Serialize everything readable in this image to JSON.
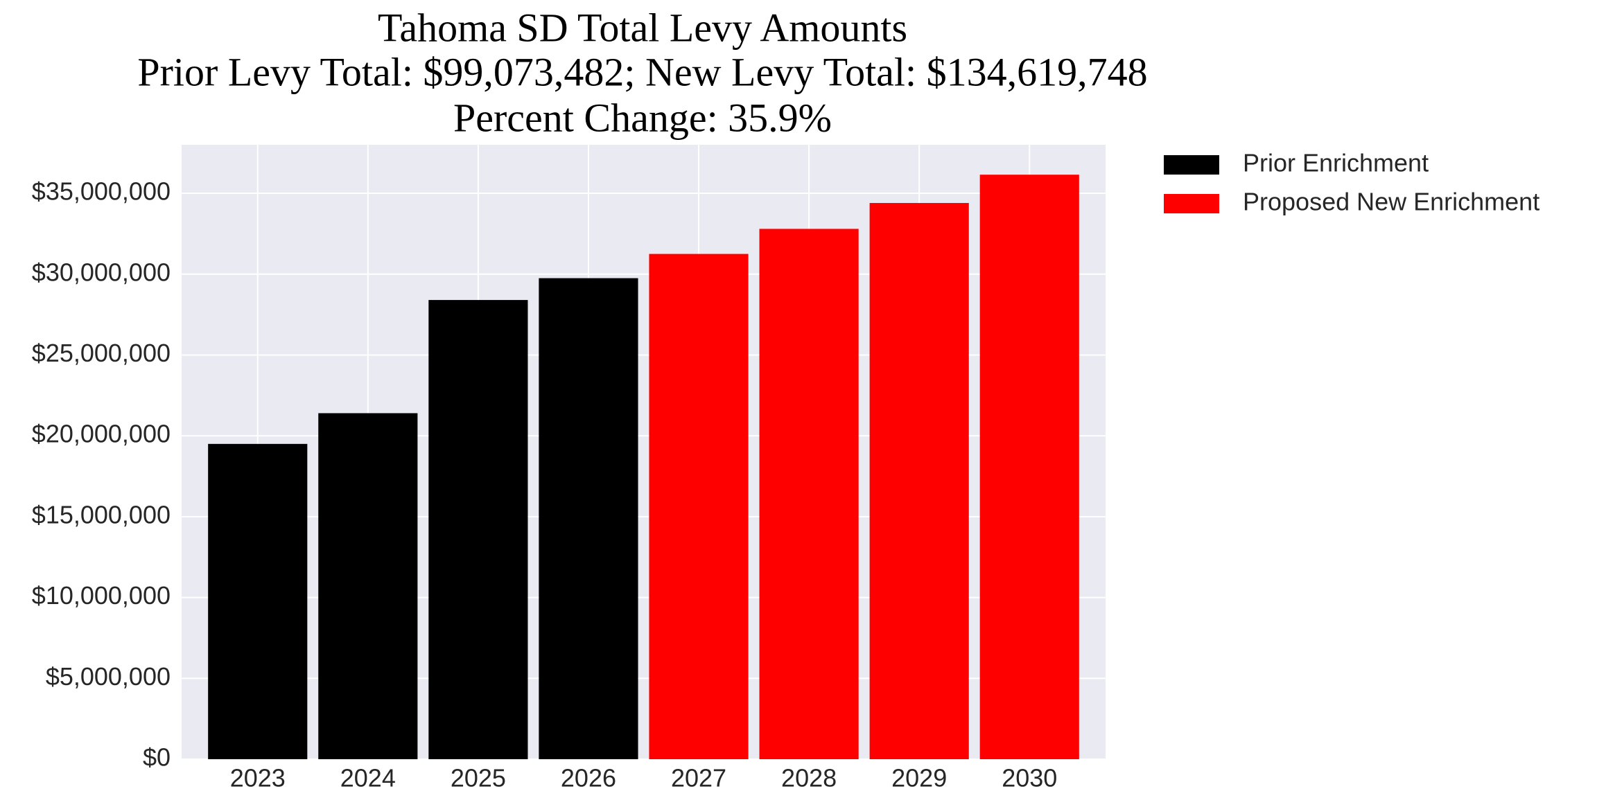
{
  "chart_data": {
    "type": "bar",
    "title": [
      "Tahoma SD Total Levy Amounts",
      "Prior Levy Total:  $99,073,482; New Levy Total: $134,619,748",
      "Percent Change: 35.9%"
    ],
    "categories": [
      "2023",
      "2024",
      "2025",
      "2026",
      "2027",
      "2028",
      "2029",
      "2030"
    ],
    "series": [
      {
        "name": "Prior Enrichment",
        "color": "#000000",
        "values": [
          19500000,
          21400000,
          28400000,
          29750000,
          null,
          null,
          null,
          null
        ]
      },
      {
        "name": "Proposed New Enrichment",
        "color": "#ff0000",
        "values": [
          null,
          null,
          null,
          null,
          31250000,
          32800000,
          34400000,
          36150000
        ]
      }
    ],
    "ylim": [
      0,
      38000000
    ],
    "yticks": [
      {
        "value": 0,
        "label": "$0"
      },
      {
        "value": 5000000,
        "label": "$5,000,000"
      },
      {
        "value": 10000000,
        "label": "$10,000,000"
      },
      {
        "value": 15000000,
        "label": "$15,000,000"
      },
      {
        "value": 20000000,
        "label": "$20,000,000"
      },
      {
        "value": 25000000,
        "label": "$25,000,000"
      },
      {
        "value": 30000000,
        "label": "$30,000,000"
      },
      {
        "value": 35000000,
        "label": "$35,000,000"
      }
    ],
    "grid": true,
    "legend": "outside-right"
  }
}
